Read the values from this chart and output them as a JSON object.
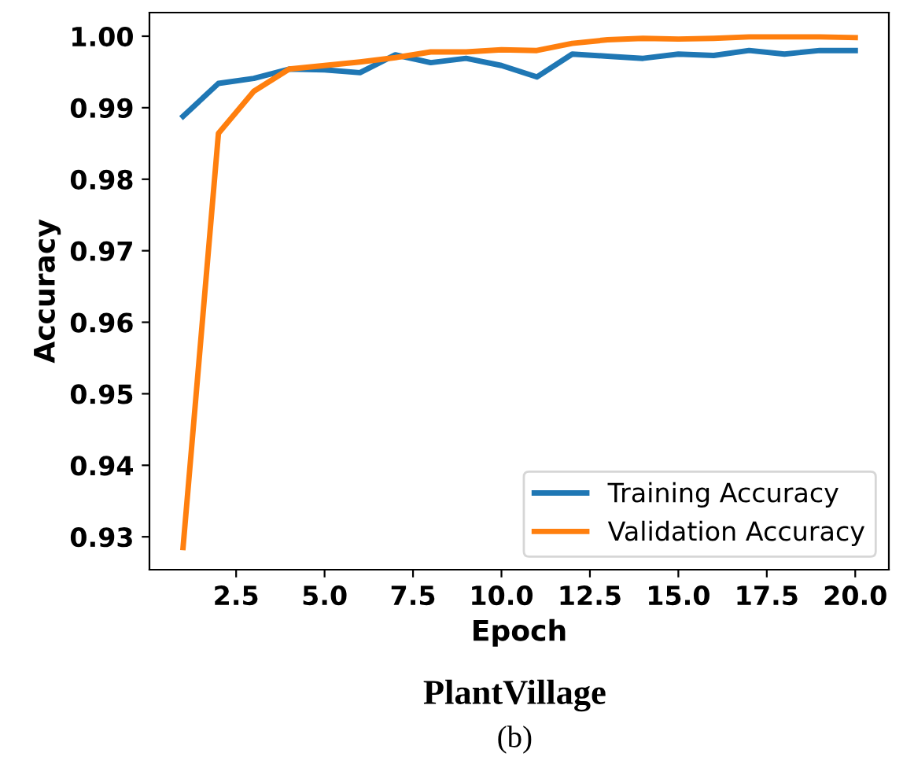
{
  "chart_data": {
    "type": "line",
    "xlabel": "Epoch",
    "ylabel": "Accuracy",
    "x": [
      1,
      2,
      3,
      4,
      5,
      6,
      7,
      8,
      9,
      10,
      11,
      12,
      13,
      14,
      15,
      16,
      17,
      18,
      19,
      20
    ],
    "series": [
      {
        "name": "Training Accuracy",
        "color": "#1f77b4",
        "values": [
          0.9888,
          0.9934,
          0.9941,
          0.9954,
          0.9953,
          0.9949,
          0.9974,
          0.9963,
          0.9969,
          0.9959,
          0.9943,
          0.9975,
          0.9972,
          0.9969,
          0.9975,
          0.9973,
          0.998,
          0.9975,
          0.998,
          0.998
        ]
      },
      {
        "name": "Validation Accuracy",
        "color": "#ff7f0e",
        "values": [
          0.9285,
          0.9864,
          0.9923,
          0.9954,
          0.9959,
          0.9964,
          0.997,
          0.9978,
          0.9978,
          0.9981,
          0.998,
          0.999,
          0.9995,
          0.9997,
          0.9996,
          0.9997,
          0.9999,
          0.9999,
          0.9999,
          0.9998
        ]
      }
    ],
    "xlim": [
      0.05,
      20.95
    ],
    "ylim": [
      0.9254,
      1.0033
    ],
    "xticks": [
      {
        "value": 2.5,
        "label": "2.5"
      },
      {
        "value": 5,
        "label": "5.0"
      },
      {
        "value": 7.5,
        "label": "7.5"
      },
      {
        "value": 10,
        "label": "10.0"
      },
      {
        "value": 12.5,
        "label": "12.5"
      },
      {
        "value": 15,
        "label": "15.0"
      },
      {
        "value": 17.5,
        "label": "17.5"
      },
      {
        "value": 20,
        "label": "20.0"
      }
    ],
    "yticks": [
      {
        "value": 0.93,
        "label": "0.93"
      },
      {
        "value": 0.94,
        "label": "0.94"
      },
      {
        "value": 0.95,
        "label": "0.95"
      },
      {
        "value": 0.96,
        "label": "0.96"
      },
      {
        "value": 0.97,
        "label": "0.97"
      },
      {
        "value": 0.98,
        "label": "0.98"
      },
      {
        "value": 0.99,
        "label": "0.99"
      },
      {
        "value": 1.0,
        "label": "1.00"
      }
    ],
    "grid": false,
    "legend": "bottom right",
    "line_style": "solid",
    "annotations": [
      "PlantVillage",
      "(b)"
    ]
  }
}
